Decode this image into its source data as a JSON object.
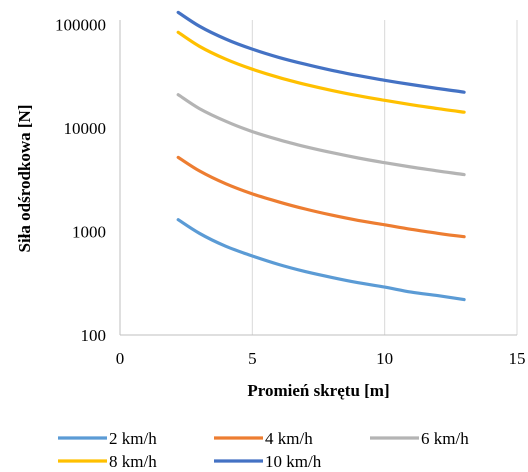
{
  "chart_data": {
    "type": "line",
    "xlabel": "Promień skrętu [m]",
    "ylabel": "Siła odśrodkowa [N]",
    "xlim": [
      0,
      15
    ],
    "ylim": [
      100,
      150000
    ],
    "yscale": "log",
    "x_ticks": [
      "0",
      "5",
      "10",
      "15"
    ],
    "y_ticks": [
      "100",
      "1000",
      "10000",
      "100000"
    ],
    "grid": "vertical",
    "legend": "bottom",
    "x": [
      2.2,
      3,
      4,
      5,
      6,
      7,
      8,
      9,
      10,
      11,
      12,
      13
    ],
    "series": [
      {
        "name": "2 km/h",
        "color": "#5b9bd5",
        "values": [
          1300,
          960,
          720,
          580,
          480,
          410,
          360,
          320,
          290,
          260,
          240,
          220
        ]
      },
      {
        "name": "4 km/h",
        "color": "#ed7d31",
        "values": [
          5200,
          3850,
          2890,
          2310,
          1930,
          1650,
          1440,
          1280,
          1160,
          1050,
          960,
          890
        ]
      },
      {
        "name": "6 km/h",
        "color": "#b4b4b4",
        "values": [
          21000,
          15400,
          11600,
          9240,
          7700,
          6600,
          5780,
          5130,
          4620,
          4200,
          3850,
          3550
        ]
      },
      {
        "name": "8 km/h",
        "color": "#ffc000",
        "values": [
          84000,
          61600,
          46200,
          37000,
          30800,
          26400,
          23100,
          20500,
          18500,
          16800,
          15400,
          14200
        ]
      },
      {
        "name": "10 km/h",
        "color": "#4472c4",
        "values": [
          131000,
          96300,
          72200,
          57800,
          48100,
          41300,
          36100,
          32100,
          28900,
          26300,
          24100,
          22200
        ]
      }
    ]
  }
}
